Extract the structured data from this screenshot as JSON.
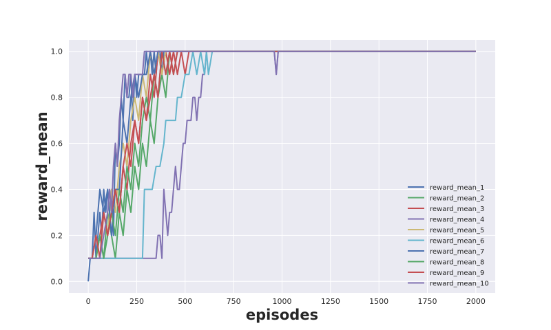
{
  "chart_data": {
    "type": "line",
    "title": "",
    "xlabel": "episodes",
    "ylabel": "reward_mean",
    "xlim": [
      -100,
      2100
    ],
    "ylim": [
      -0.05,
      1.05
    ],
    "xticks": [
      0,
      250,
      500,
      750,
      1000,
      1250,
      1500,
      1750,
      2000
    ],
    "yticks": [
      0.0,
      0.2,
      0.4,
      0.6,
      0.8,
      1.0
    ],
    "grid": true,
    "legend_position": "lower-right",
    "series": [
      {
        "name": "reward_mean_1",
        "color": "#4c72b0",
        "x": [
          0,
          10,
          20,
          30,
          40,
          50,
          60,
          70,
          80,
          90,
          100,
          110,
          120,
          130,
          140,
          150,
          160,
          170,
          180,
          190,
          200,
          210,
          220,
          230,
          240,
          250,
          260,
          270,
          280,
          290,
          300,
          310,
          320,
          330,
          340,
          350,
          360,
          370,
          380,
          390,
          400,
          2000
        ],
        "y": [
          0.0,
          0.1,
          0.1,
          0.3,
          0.1,
          0.2,
          0.3,
          0.2,
          0.4,
          0.3,
          0.4,
          0.3,
          0.4,
          0.2,
          0.6,
          0.5,
          0.6,
          0.8,
          0.7,
          0.9,
          0.8,
          0.8,
          0.9,
          0.7,
          0.9,
          0.8,
          0.9,
          0.9,
          0.9,
          0.9,
          1.0,
          0.9,
          1.0,
          0.9,
          1.0,
          0.9,
          1.0,
          1.0,
          0.9,
          1.0,
          1.0,
          1.0
        ]
      },
      {
        "name": "reward_mean_2",
        "color": "#55a868",
        "x": [
          0,
          20,
          40,
          60,
          80,
          100,
          120,
          140,
          160,
          180,
          200,
          220,
          240,
          260,
          280,
          300,
          320,
          340,
          360,
          380,
          400,
          420,
          440,
          460,
          480,
          2000
        ],
        "y": [
          0.1,
          0.1,
          0.1,
          0.2,
          0.1,
          0.3,
          0.2,
          0.1,
          0.3,
          0.2,
          0.4,
          0.3,
          0.5,
          0.4,
          0.6,
          0.5,
          0.7,
          0.6,
          0.8,
          0.9,
          0.8,
          1.0,
          0.9,
          1.0,
          1.0,
          1.0
        ]
      },
      {
        "name": "reward_mean_3",
        "color": "#c44e52",
        "x": [
          0,
          20,
          40,
          60,
          80,
          100,
          120,
          140,
          160,
          180,
          200,
          220,
          240,
          260,
          280,
          300,
          320,
          340,
          360,
          380,
          400,
          420,
          440,
          460,
          480,
          500,
          520,
          540,
          2000
        ],
        "y": [
          0.1,
          0.1,
          0.1,
          0.2,
          0.3,
          0.2,
          0.3,
          0.4,
          0.3,
          0.5,
          0.4,
          0.6,
          0.7,
          0.6,
          0.8,
          0.7,
          0.9,
          0.8,
          1.0,
          0.9,
          1.0,
          0.9,
          1.0,
          0.9,
          1.0,
          0.9,
          1.0,
          1.0,
          1.0
        ]
      },
      {
        "name": "reward_mean_4",
        "color": "#8172b2",
        "x": [
          0,
          100,
          200,
          300,
          350,
          360,
          370,
          380,
          390,
          400,
          410,
          420,
          430,
          440,
          450,
          460,
          470,
          480,
          490,
          500,
          510,
          520,
          530,
          540,
          550,
          560,
          570,
          580,
          590,
          600,
          610,
          620,
          630,
          950,
          960,
          970,
          980,
          2000
        ],
        "y": [
          0.1,
          0.1,
          0.1,
          0.1,
          0.1,
          0.2,
          0.2,
          0.1,
          0.4,
          0.3,
          0.2,
          0.3,
          0.3,
          0.4,
          0.5,
          0.4,
          0.4,
          0.5,
          0.6,
          0.6,
          0.7,
          0.7,
          0.7,
          0.8,
          0.8,
          0.7,
          0.8,
          0.8,
          0.9,
          0.9,
          1.0,
          1.0,
          1.0,
          1.0,
          1.0,
          0.9,
          1.0,
          1.0
        ]
      },
      {
        "name": "reward_mean_5",
        "color": "#ccb974",
        "x": [
          0,
          20,
          40,
          60,
          80,
          100,
          120,
          140,
          160,
          180,
          200,
          220,
          240,
          260,
          280,
          300,
          320,
          340,
          360,
          380,
          400,
          2000
        ],
        "y": [
          0.1,
          0.1,
          0.2,
          0.1,
          0.3,
          0.2,
          0.4,
          0.3,
          0.5,
          0.6,
          0.5,
          0.7,
          0.8,
          0.7,
          0.9,
          0.8,
          1.0,
          0.9,
          1.0,
          0.9,
          1.0,
          1.0
        ]
      },
      {
        "name": "reward_mean_6",
        "color": "#64b5cd",
        "x": [
          0,
          100,
          200,
          280,
          290,
          300,
          330,
          350,
          370,
          390,
          400,
          450,
          460,
          480,
          500,
          520,
          540,
          560,
          580,
          600,
          610,
          620,
          640,
          2000
        ],
        "y": [
          0.1,
          0.1,
          0.1,
          0.1,
          0.4,
          0.4,
          0.4,
          0.5,
          0.5,
          0.6,
          0.7,
          0.7,
          0.8,
          0.8,
          0.9,
          0.9,
          1.0,
          0.9,
          1.0,
          0.9,
          1.0,
          0.9,
          1.0,
          1.0
        ]
      },
      {
        "name": "reward_mean_7",
        "color": "#4c72b0",
        "x": [
          0,
          20,
          40,
          60,
          80,
          100,
          120,
          140,
          160,
          180,
          200,
          220,
          240,
          260,
          280,
          300,
          320,
          340,
          360,
          380,
          2000
        ],
        "y": [
          0.1,
          0.1,
          0.2,
          0.4,
          0.3,
          0.4,
          0.2,
          0.4,
          0.4,
          0.7,
          0.6,
          0.8,
          0.9,
          0.8,
          0.9,
          0.9,
          1.0,
          0.9,
          1.0,
          1.0,
          1.0
        ]
      },
      {
        "name": "reward_mean_8",
        "color": "#55a868",
        "x": [
          0,
          20,
          40,
          60,
          80,
          100,
          120,
          140,
          160,
          180,
          200,
          220,
          240,
          260,
          280,
          300,
          320,
          340,
          360,
          380,
          400,
          420,
          440,
          2000
        ],
        "y": [
          0.1,
          0.1,
          0.1,
          0.2,
          0.1,
          0.2,
          0.3,
          0.2,
          0.4,
          0.3,
          0.5,
          0.4,
          0.6,
          0.5,
          0.7,
          0.8,
          0.7,
          0.9,
          0.8,
          1.0,
          0.9,
          1.0,
          1.0,
          1.0
        ]
      },
      {
        "name": "reward_mean_9",
        "color": "#c44e52",
        "x": [
          0,
          20,
          40,
          60,
          80,
          100,
          120,
          140,
          160,
          180,
          200,
          220,
          240,
          260,
          280,
          300,
          320,
          340,
          360,
          380,
          400,
          420,
          440,
          460,
          2000
        ],
        "y": [
          0.1,
          0.1,
          0.2,
          0.1,
          0.3,
          0.2,
          0.3,
          0.4,
          0.3,
          0.5,
          0.6,
          0.5,
          0.7,
          0.6,
          0.8,
          0.7,
          0.8,
          0.9,
          0.8,
          1.0,
          0.9,
          1.0,
          0.9,
          1.0,
          1.0
        ]
      },
      {
        "name": "reward_mean_10",
        "color": "#8172b2",
        "x": [
          0,
          20,
          40,
          60,
          80,
          100,
          110,
          120,
          130,
          140,
          150,
          160,
          170,
          180,
          190,
          200,
          210,
          220,
          230,
          240,
          250,
          260,
          270,
          280,
          290,
          960,
          970,
          980,
          2000
        ],
        "y": [
          0.1,
          0.1,
          0.1,
          0.1,
          0.2,
          0.3,
          0.4,
          0.3,
          0.5,
          0.6,
          0.5,
          0.7,
          0.8,
          0.9,
          0.9,
          0.8,
          0.9,
          0.9,
          0.8,
          0.9,
          0.9,
          0.9,
          0.9,
          0.9,
          1.0,
          1.0,
          0.9,
          1.0,
          1.0
        ]
      }
    ]
  }
}
